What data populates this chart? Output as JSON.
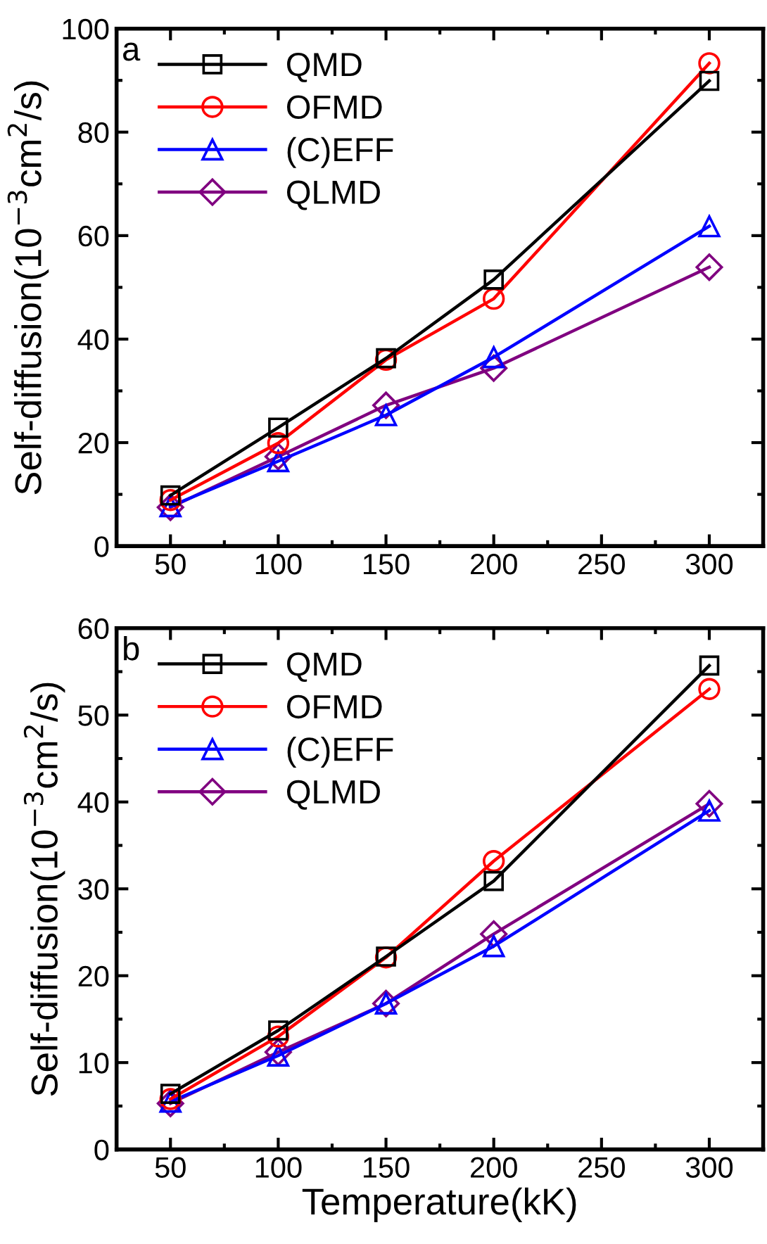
{
  "chart_data": [
    {
      "type": "line",
      "ylabel": "Self-diffusion(10$^{−3}$cm$^{2}$/s)",
      "annotations": [
        "a"
      ],
      "x": [
        50,
        100,
        150,
        200,
        300
      ],
      "xlim": [
        25,
        325
      ],
      "xticks": [
        50,
        100,
        150,
        200,
        250,
        300
      ],
      "ylim": [
        0,
        100
      ],
      "yticks": [
        0,
        20,
        40,
        60,
        80,
        100
      ],
      "legend": "top left",
      "grid": false,
      "series": [
        {
          "name": "QMD",
          "color": "#000000",
          "marker": "square",
          "values": [
            9.8,
            22.9,
            36.3,
            51.5,
            89.9
          ]
        },
        {
          "name": "OFMD",
          "color": "#ff0000",
          "marker": "circle",
          "values": [
            8.9,
            19.9,
            36.0,
            47.8,
            93.3
          ]
        },
        {
          "name": "(C)EFF",
          "color": "#0000ff",
          "marker": "triangle",
          "values": [
            7.7,
            16.4,
            25.3,
            36.5,
            61.8
          ]
        },
        {
          "name": "QLMD",
          "color": "#800080",
          "marker": "diamond",
          "values": [
            7.5,
            17.3,
            27.2,
            34.4,
            53.9
          ]
        }
      ]
    },
    {
      "type": "line",
      "xlabel": "Temperature(kK)",
      "ylabel": "Self-diffusion(10$^{−3}$cm$^{2}$/s)",
      "annotations": [
        "b"
      ],
      "x": [
        50,
        100,
        150,
        200,
        300
      ],
      "xlim": [
        25,
        325
      ],
      "xticks": [
        50,
        100,
        150,
        200,
        250,
        300
      ],
      "ylim": [
        0,
        60
      ],
      "yticks": [
        0,
        10,
        20,
        30,
        40,
        50,
        60
      ],
      "legend": "top left",
      "grid": false,
      "series": [
        {
          "name": "QMD",
          "color": "#000000",
          "marker": "square",
          "values": [
            6.4,
            13.7,
            22.2,
            30.9,
            55.7
          ]
        },
        {
          "name": "OFMD",
          "color": "#ff0000",
          "marker": "circle",
          "values": [
            5.8,
            13.0,
            22.1,
            33.2,
            53.0
          ]
        },
        {
          "name": "(C)EFF",
          "color": "#0000ff",
          "marker": "triangle",
          "values": [
            5.5,
            10.8,
            16.8,
            23.4,
            39.0
          ]
        },
        {
          "name": "QLMD",
          "color": "#800080",
          "marker": "diamond",
          "values": [
            5.3,
            11.2,
            16.8,
            24.8,
            39.8
          ]
        }
      ]
    }
  ]
}
